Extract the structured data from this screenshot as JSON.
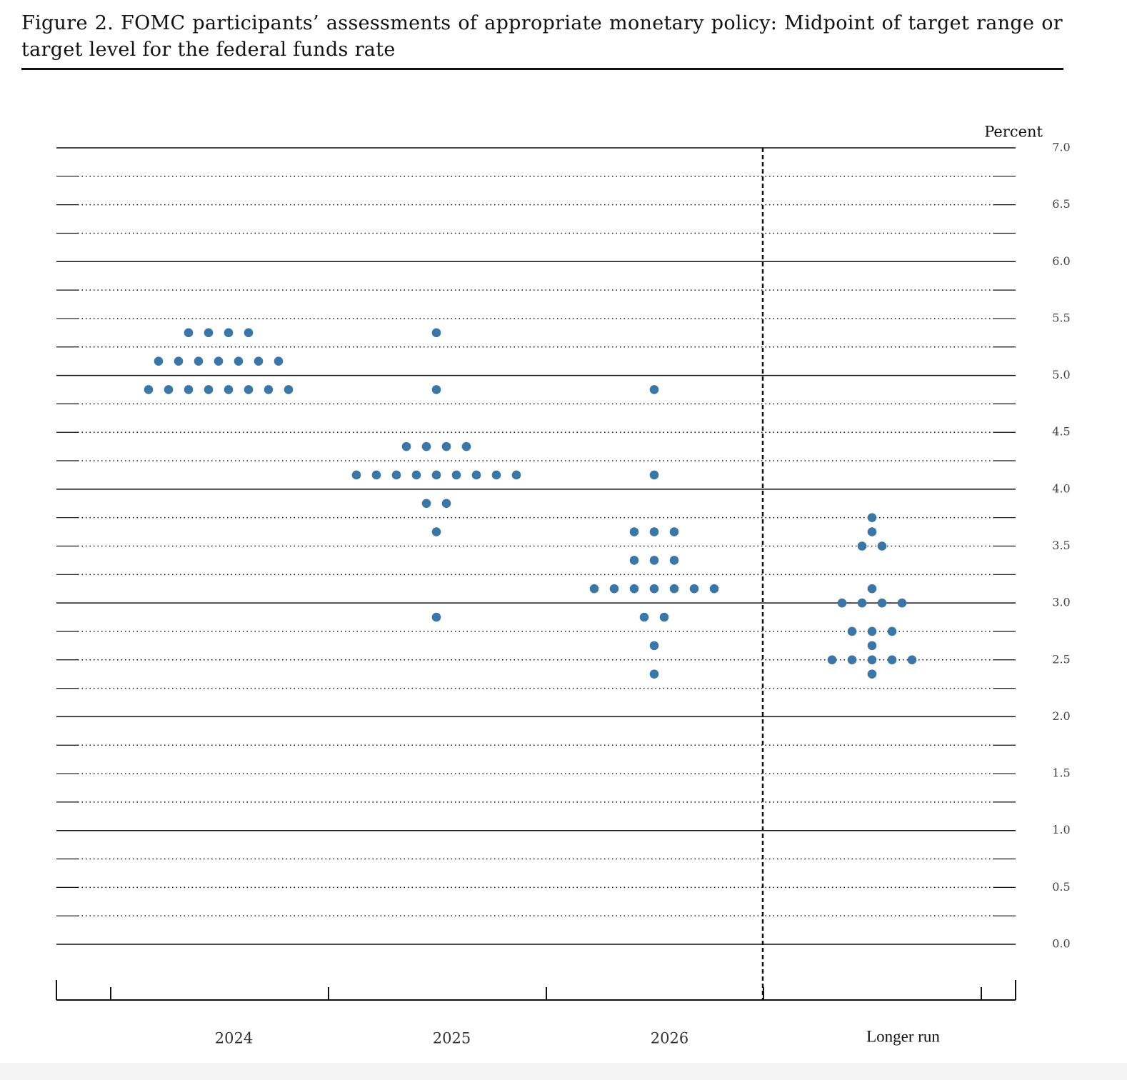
{
  "chart_data": {
    "type": "dot",
    "title": "Figure 2.  FOMC participants’ assessments of appropriate monetary policy:  Midpoint of target range or target level for the federal funds rate",
    "y_label": "Percent",
    "categories": [
      "2024",
      "2025",
      "2026",
      "Longer run"
    ],
    "values": [
      [
        5.375,
        5.375,
        5.375,
        5.375,
        5.125,
        5.125,
        5.125,
        5.125,
        5.125,
        5.125,
        5.125,
        4.875,
        4.875,
        4.875,
        4.875,
        4.875,
        4.875,
        4.875,
        4.875
      ],
      [
        5.375,
        4.875,
        4.375,
        4.375,
        4.375,
        4.375,
        4.125,
        4.125,
        4.125,
        4.125,
        4.125,
        4.125,
        4.125,
        4.125,
        4.125,
        3.875,
        3.875,
        3.625,
        2.875
      ],
      [
        4.875,
        4.125,
        3.625,
        3.625,
        3.625,
        3.375,
        3.375,
        3.375,
        3.125,
        3.125,
        3.125,
        3.125,
        3.125,
        3.125,
        3.125,
        2.875,
        2.875,
        2.625,
        2.375
      ],
      [
        3.75,
        3.625,
        3.5,
        3.5,
        3.125,
        3.0,
        3.0,
        3.0,
        3.0,
        2.75,
        2.75,
        2.75,
        2.625,
        2.5,
        2.5,
        2.5,
        2.5,
        2.5,
        2.375
      ]
    ],
    "color": "#3a76a8",
    "ylim": [
      0,
      7
    ],
    "yticks": [
      {
        "value": 0,
        "label": "0.0"
      },
      {
        "value": 0.5,
        "label": "0.5"
      },
      {
        "value": 1,
        "label": "1.0"
      },
      {
        "value": 1.5,
        "label": "1.5"
      },
      {
        "value": 2,
        "label": "2.0"
      },
      {
        "value": 2.5,
        "label": "2.5"
      },
      {
        "value": 3,
        "label": "3.0"
      },
      {
        "value": 3.5,
        "label": "3.5"
      },
      {
        "value": 4,
        "label": "4.0"
      },
      {
        "value": 4.5,
        "label": "4.5"
      },
      {
        "value": 5,
        "label": "5.0"
      },
      {
        "value": 5.5,
        "label": "5.5"
      },
      {
        "value": 6,
        "label": "6.0"
      },
      {
        "value": 6.5,
        "label": "6.5"
      },
      {
        "value": 7,
        "label": "7.0"
      }
    ],
    "grid": true
  }
}
